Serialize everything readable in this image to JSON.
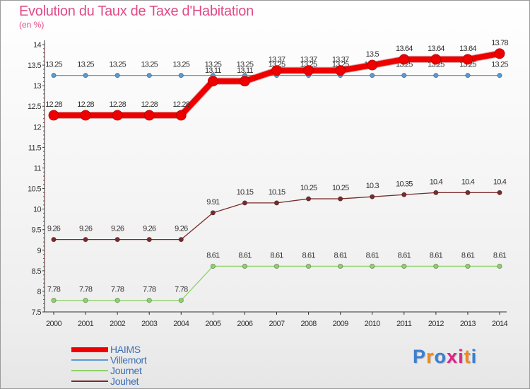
{
  "chart_data": {
    "type": "line",
    "title": "Evolution du Taux de Taxe d'Habitation",
    "subtitle": "(en %)",
    "xlabel": "",
    "ylabel": "",
    "x": [
      "2000",
      "2001",
      "2002",
      "2003",
      "2004",
      "2005",
      "2006",
      "2007",
      "2008",
      "2009",
      "2010",
      "2011",
      "2012",
      "2013",
      "2014"
    ],
    "ylim": [
      7.5,
      14
    ],
    "yticks": [
      "7.5",
      "8",
      "8.5",
      "9",
      "9.5",
      "10",
      "10.5",
      "11",
      "11.5",
      "12",
      "12.5",
      "13",
      "13.5",
      "14"
    ],
    "ytick_values": [
      7.5,
      8,
      8.5,
      9,
      9.5,
      10,
      10.5,
      11,
      11.5,
      12,
      12.5,
      13,
      13.5,
      14
    ],
    "grid": false,
    "legend_position": "bottom-left",
    "series": [
      {
        "name": "Villemort",
        "color": "#5b9bd0",
        "values": [
          13.25,
          13.25,
          13.25,
          13.25,
          13.25,
          13.25,
          13.25,
          13.25,
          13.25,
          13.25,
          13.25,
          13.25,
          13.25,
          13.25,
          13.25
        ],
        "labels": [
          "13.25",
          "13.25",
          "13.25",
          "13.25",
          "13.25",
          "13.25",
          "13.25",
          "13.25",
          "13.25",
          "13.25",
          "13.25",
          "13.25",
          "13.25",
          "13.25",
          "13.25"
        ]
      },
      {
        "name": "Journet",
        "color": "#8fd16a",
        "values": [
          7.78,
          7.78,
          7.78,
          7.78,
          7.78,
          8.61,
          8.61,
          8.61,
          8.61,
          8.61,
          8.61,
          8.61,
          8.61,
          8.61,
          8.61
        ],
        "labels": [
          "7.78",
          "7.78",
          "7.78",
          "7.78",
          "7.78",
          "8.61",
          "8.61",
          "8.61",
          "8.61",
          "8.61",
          "8.61",
          "8.61",
          "8.61",
          "8.61",
          "8.61"
        ]
      },
      {
        "name": "Jouhet",
        "color": "#7a2a2a",
        "values": [
          9.26,
          9.26,
          9.26,
          9.26,
          9.26,
          9.91,
          10.15,
          10.15,
          10.25,
          10.25,
          10.3,
          10.35,
          10.4,
          10.4,
          10.4
        ],
        "labels": [
          "9.26",
          "9.26",
          "9.26",
          "9.26",
          "9.26",
          "9.91",
          "10.15",
          "10.15",
          "10.25",
          "10.25",
          "10.3",
          "10.35",
          "10.4",
          "10.4",
          "10.4"
        ]
      },
      {
        "name": "HAIMS",
        "color": "#ee0000",
        "values": [
          12.28,
          12.28,
          12.28,
          12.28,
          12.28,
          13.11,
          13.11,
          13.37,
          13.37,
          13.37,
          13.5,
          13.64,
          13.64,
          13.64,
          13.78
        ],
        "labels": [
          "12.28",
          "12.28",
          "12.28",
          "12.28",
          "12.28",
          "13.11",
          "13.11",
          "13.37",
          "13.37",
          "13.37",
          "13.5",
          "13.64",
          "13.64",
          "13.64",
          "13.78"
        ]
      }
    ]
  },
  "legend": {
    "items": [
      {
        "label": "HAIMS",
        "color": "#ee0000"
      },
      {
        "label": "Villemort",
        "color": "#5b9bd0"
      },
      {
        "label": "Journet",
        "color": "#8fd16a"
      },
      {
        "label": "Jouhet",
        "color": "#7a2a2a"
      }
    ]
  },
  "logo": {
    "text": "Proxiti",
    "letter_colors": [
      "#3a7fd0",
      "#f08a1c",
      "#3a7fd0",
      "#e0228a",
      "#e0228a",
      "#f08a1c",
      "#3a7fd0"
    ]
  }
}
